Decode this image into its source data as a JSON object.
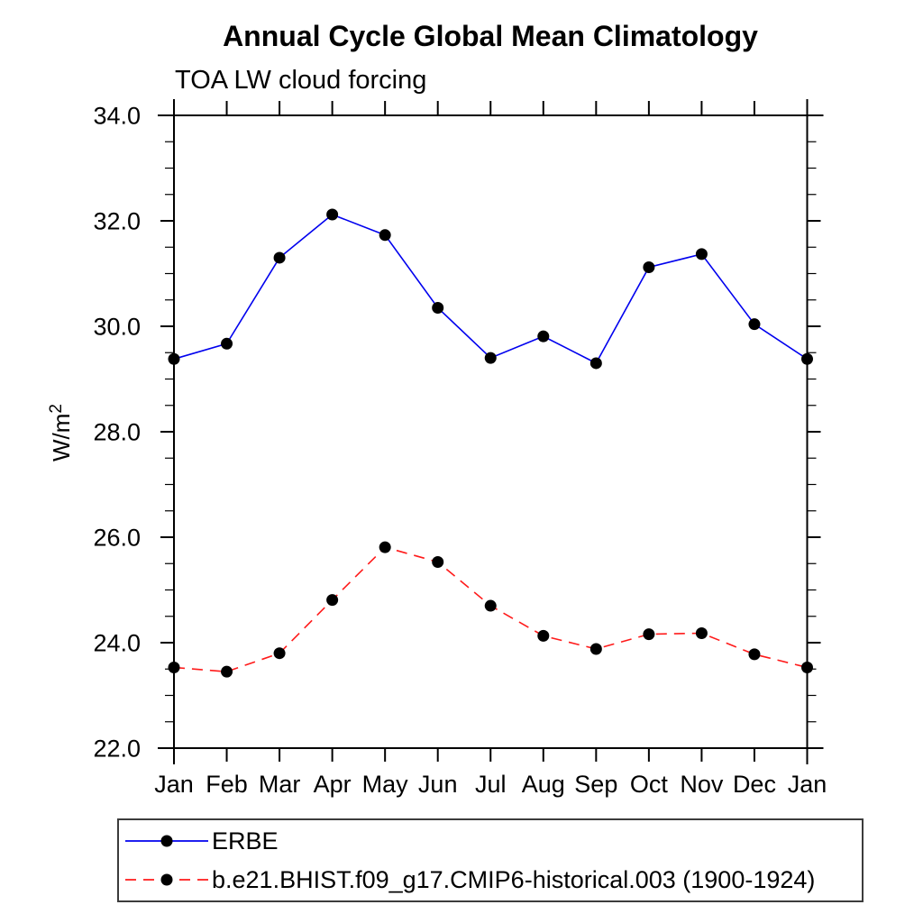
{
  "chart_data": {
    "type": "line",
    "title": "Annual Cycle Global Mean Climatology",
    "subtitle": "TOA LW cloud forcing",
    "ylabel": "W/m²",
    "xlabel": "",
    "categories": [
      "Jan",
      "Feb",
      "Mar",
      "Apr",
      "May",
      "Jun",
      "Jul",
      "Aug",
      "Sep",
      "Oct",
      "Nov",
      "Dec",
      "Jan"
    ],
    "series": [
      {
        "id": "erbe",
        "name": "ERBE",
        "color": "#0000ee",
        "line_style": "solid",
        "marker": "filled-circle",
        "marker_color": "#000000",
        "values": [
          29.38,
          29.67,
          31.3,
          32.12,
          31.73,
          30.35,
          29.4,
          29.81,
          29.3,
          31.12,
          31.37,
          30.04,
          29.38
        ]
      },
      {
        "id": "cmip6-historical",
        "name": "b.e21.BHIST.f09_g17.CMIP6-historical.003 (1900-1924)",
        "color": "#ff1a1a",
        "line_style": "dashed",
        "marker": "filled-circle",
        "marker_color": "#000000",
        "values": [
          23.53,
          23.45,
          23.8,
          24.81,
          25.81,
          25.53,
          24.7,
          24.13,
          23.88,
          24.16,
          24.18,
          23.78,
          23.53
        ]
      }
    ],
    "ylim": [
      22.0,
      34.0
    ],
    "ytick_major_step": 2.0,
    "ytick_minor_step": 0.5,
    "ytick_labels": [
      "22.0",
      "24.0",
      "26.0",
      "28.0",
      "30.0",
      "32.0",
      "34.0"
    ],
    "grid": "off",
    "legend_position": "framed box, bottom-left below plot"
  }
}
